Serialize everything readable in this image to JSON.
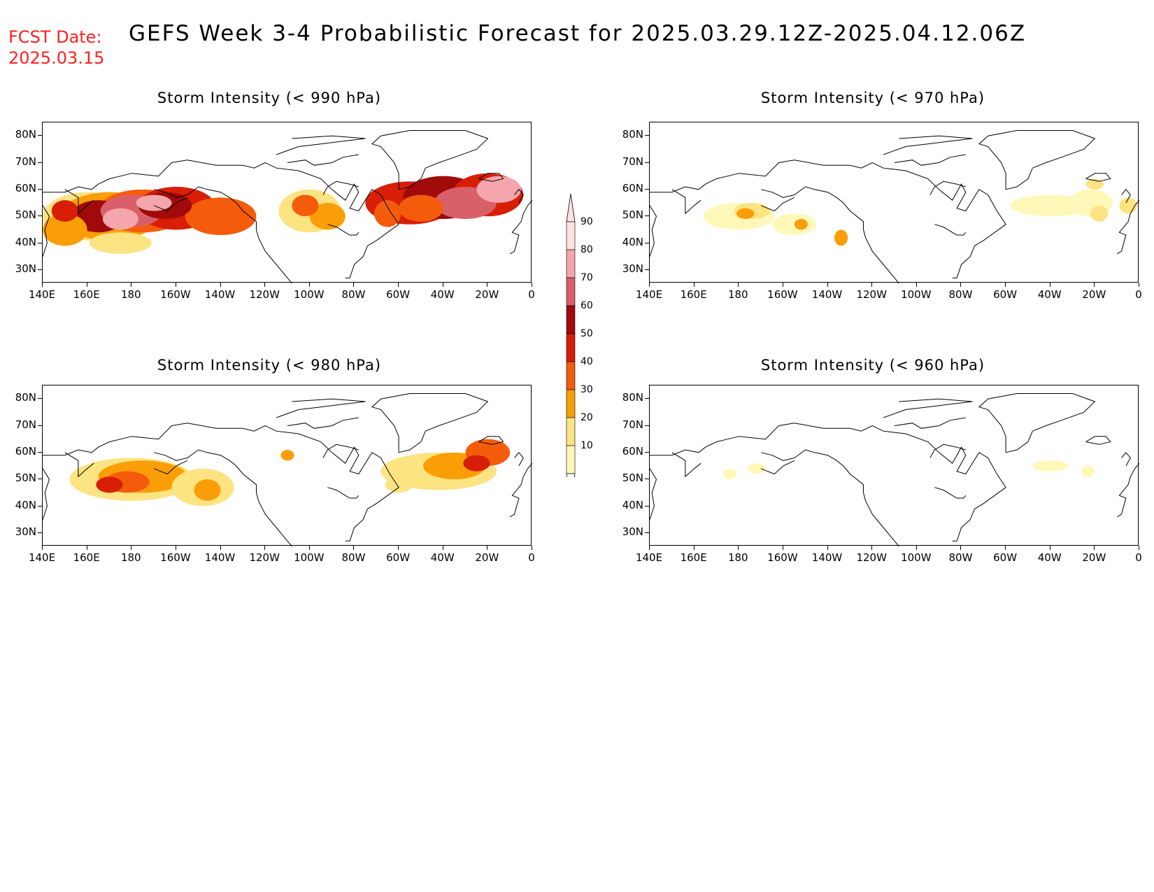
{
  "header": {
    "fcst_label": "FCST Date:\n2025.03.15",
    "title": "GEFS Week 3-4 Probabilistic Forecast for 2025.03.29.12Z-2025.04.12.06Z"
  },
  "panels": [
    {
      "id": "p990",
      "title": "Storm Intensity (< 990 hPa)",
      "level": "high"
    },
    {
      "id": "p970",
      "title": "Storm Intensity (< 970 hPa)",
      "level": "low"
    },
    {
      "id": "p980",
      "title": "Storm Intensity (< 980 hPa)",
      "level": "mid"
    },
    {
      "id": "p960",
      "title": "Storm Intensity (< 960 hPa)",
      "level": "vlow"
    }
  ],
  "axes": {
    "lat_labels": [
      "80N",
      "70N",
      "60N",
      "50N",
      "40N",
      "30N"
    ],
    "lon_labels": [
      "140E",
      "160E",
      "180",
      "160W",
      "140W",
      "120W",
      "100W",
      "80W",
      "60W",
      "40W",
      "20W",
      "0"
    ],
    "lat_range": [
      25,
      85
    ],
    "lon_range": [
      140,
      360
    ]
  },
  "colorbar": {
    "labels": [
      "90",
      "80",
      "70",
      "60",
      "50",
      "40",
      "30",
      "20",
      "10"
    ],
    "colors": [
      "#ffe0e0",
      "#f4a6ac",
      "#d8606a",
      "#a00a0a",
      "#d81e06",
      "#f45c0c",
      "#fa9e08",
      "#fce482",
      "#fff8b8"
    ]
  }
}
